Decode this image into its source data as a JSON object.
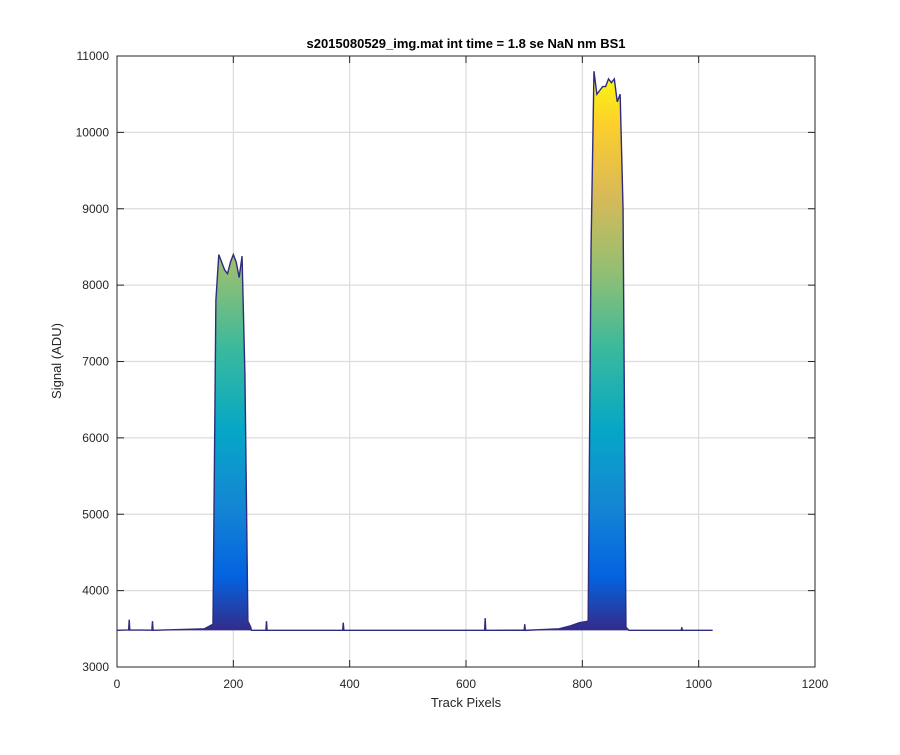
{
  "chart_data": {
    "type": "area",
    "title": "s2015080529_img.mat int time = 1.8 se  NaN nm BS1",
    "xlabel": "Track Pixels",
    "ylabel": "Signal (ADU)",
    "xlim": [
      0,
      1200
    ],
    "ylim": [
      3000,
      11000
    ],
    "xticks": [
      0,
      200,
      400,
      600,
      800,
      1000,
      1200
    ],
    "yticks": [
      3000,
      4000,
      5000,
      6000,
      7000,
      8000,
      9000,
      10000,
      11000
    ],
    "xtick_labels": [
      "0",
      "200",
      "400",
      "600",
      "800",
      "1000",
      "1200"
    ],
    "ytick_labels": [
      "3000",
      "4000",
      "5000",
      "6000",
      "7000",
      "8000",
      "9000",
      "10000",
      "11000"
    ],
    "grid": true,
    "colormap": "parula (color mapped to signal value)",
    "baseline": 3480,
    "series": [
      {
        "x": [
          0,
          20,
          21,
          22,
          60,
          61,
          62,
          150,
          160,
          165,
          170,
          175,
          180,
          185,
          190,
          195,
          200,
          205,
          210,
          215,
          220,
          225,
          230,
          231,
          240,
          256,
          257,
          258,
          300,
          388,
          389,
          390,
          500,
          632,
          633,
          634,
          700,
          701,
          702,
          760,
          780,
          795,
          810,
          815,
          820,
          825,
          830,
          835,
          840,
          845,
          850,
          855,
          860,
          865,
          870,
          875,
          880,
          881,
          900,
          970,
          971,
          972,
          1024
        ],
        "values": [
          3480,
          3485,
          3620,
          3485,
          3482,
          3600,
          3480,
          3500,
          3540,
          3560,
          7800,
          8400,
          8300,
          8200,
          8150,
          8300,
          8400,
          8300,
          8100,
          8380,
          6800,
          3600,
          3520,
          3480,
          3480,
          3482,
          3600,
          3480,
          3480,
          3480,
          3580,
          3480,
          3480,
          3480,
          3640,
          3480,
          3482,
          3560,
          3480,
          3500,
          3540,
          3580,
          3600,
          8500,
          10800,
          10500,
          10550,
          10600,
          10600,
          10700,
          10650,
          10700,
          10400,
          10500,
          9000,
          3520,
          3480,
          3480,
          3480,
          3480,
          3520,
          3480,
          3480
        ]
      }
    ]
  }
}
